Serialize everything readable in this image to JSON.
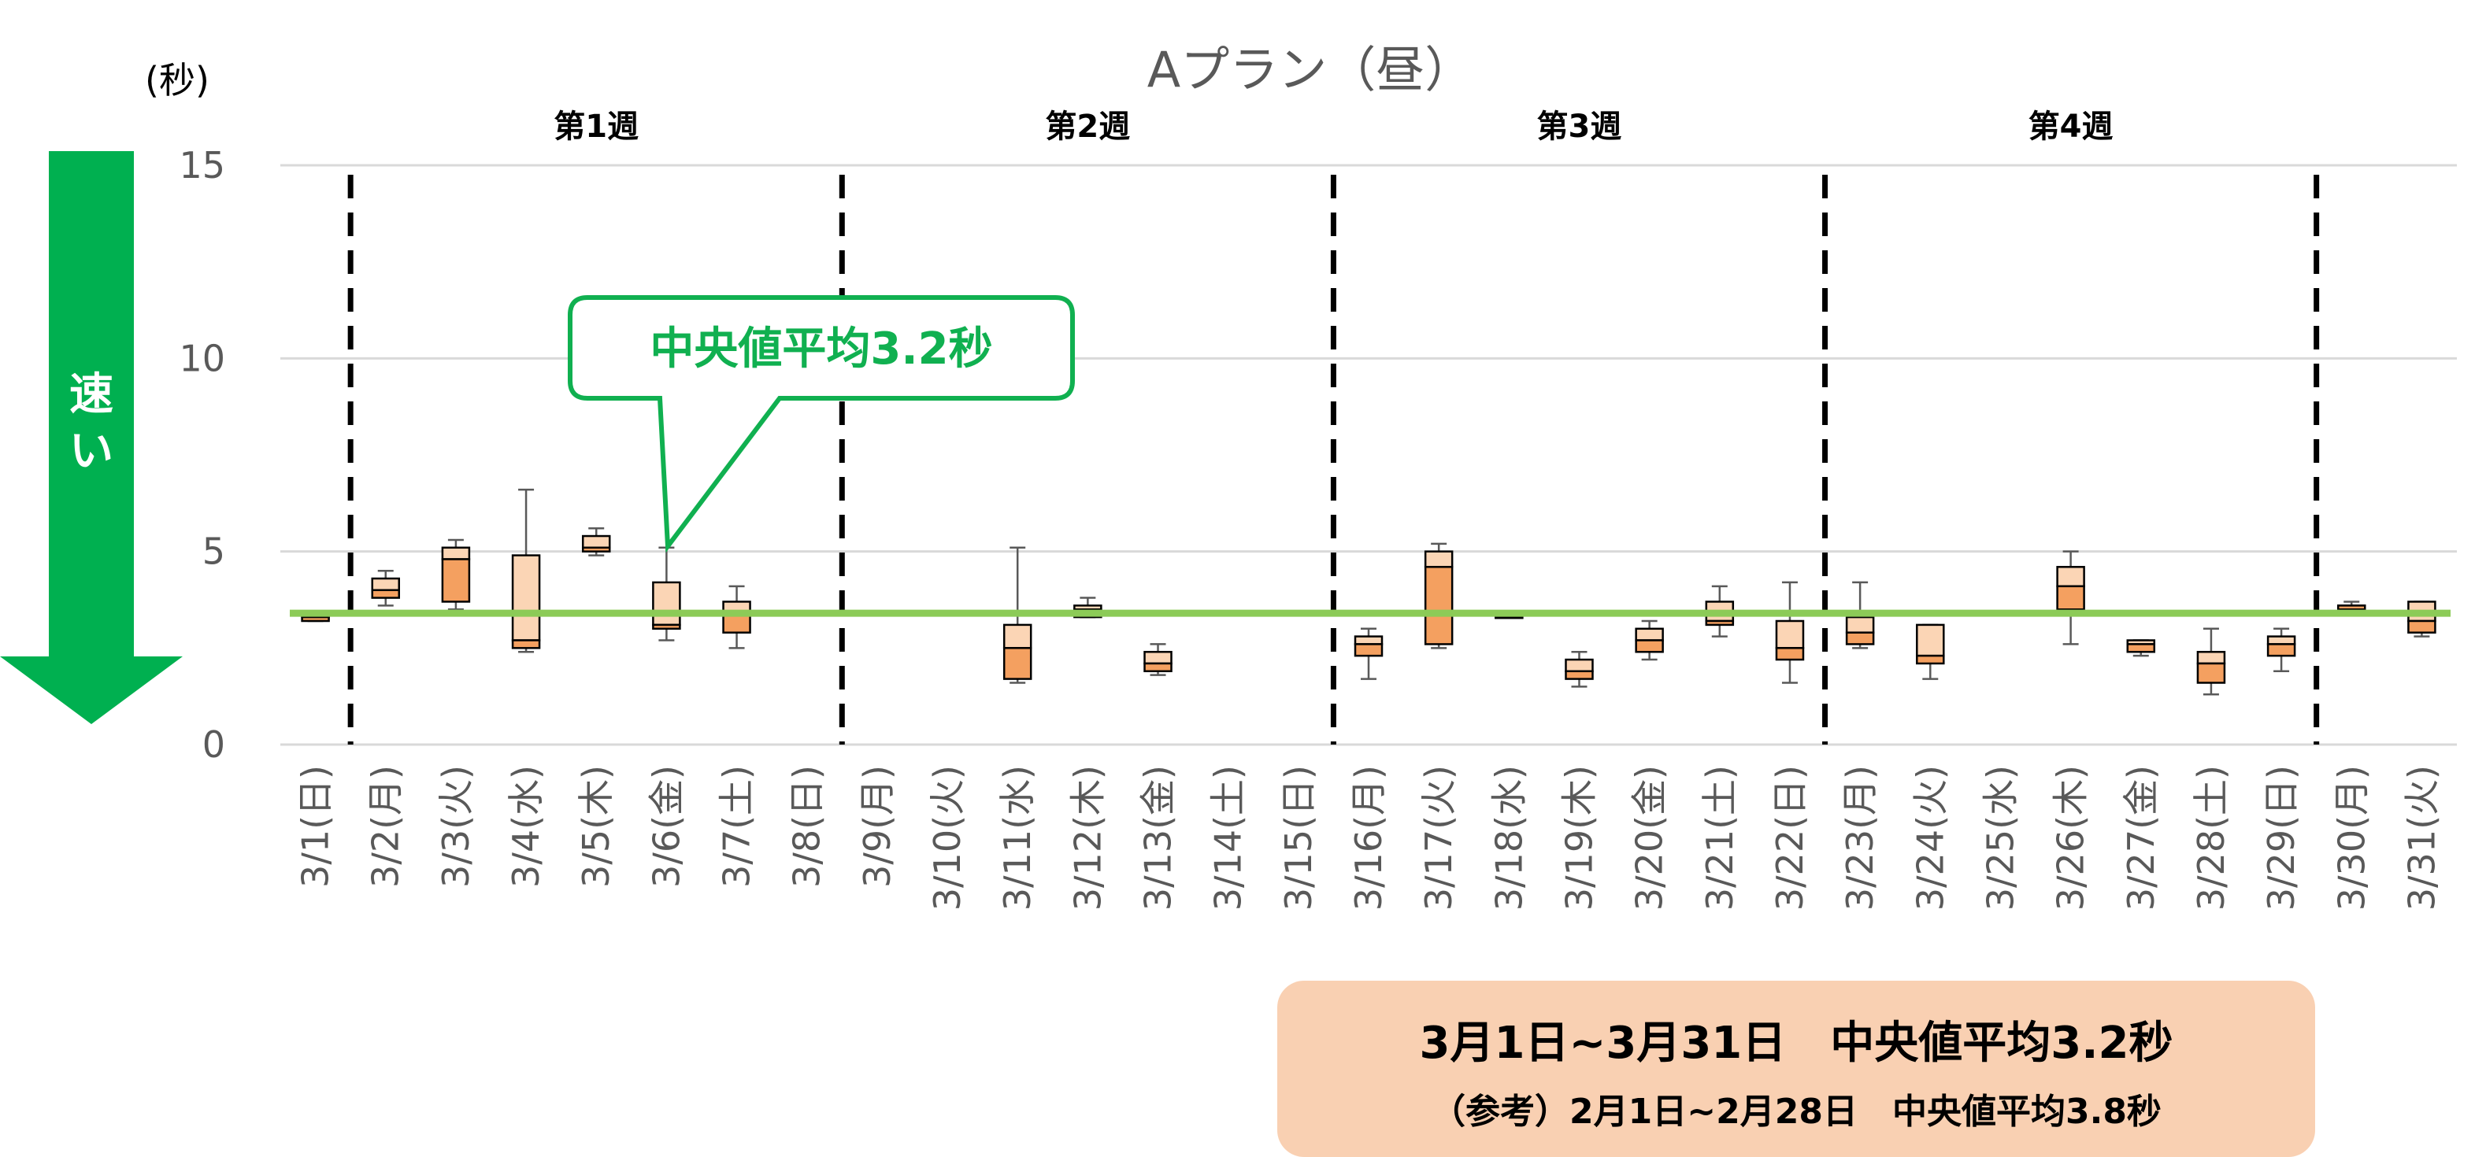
{
  "chart_data": {
    "type": "box",
    "title": "Aプラン（昼）",
    "yunit": "(秒)",
    "ylim": [
      0,
      15
    ],
    "yticks": [
      0,
      5,
      10,
      15
    ],
    "categories": [
      "3/1(日)",
      "3/2(月)",
      "3/3(火)",
      "3/4(水)",
      "3/5(木)",
      "3/6(金)",
      "3/7(土)",
      "3/8(日)",
      "3/9(月)",
      "3/10(火)",
      "3/11(水)",
      "3/12(木)",
      "3/13(金)",
      "3/14(土)",
      "3/15(日)",
      "3/16(月)",
      "3/17(火)",
      "3/18(水)",
      "3/19(木)",
      "3/20(金)",
      "3/21(土)",
      "3/22(日)",
      "3/23(月)",
      "3/24(火)",
      "3/25(水)",
      "3/26(木)",
      "3/27(金)",
      "3/28(土)",
      "3/29(日)",
      "3/30(月)",
      "3/31(火)"
    ],
    "boxes": [
      {
        "min": 3.2,
        "q1": 3.2,
        "median": 3.3,
        "q3": 3.4,
        "max": 3.4
      },
      {
        "min": 3.6,
        "q1": 3.8,
        "median": 4.0,
        "q3": 4.3,
        "max": 4.5
      },
      {
        "min": 3.5,
        "q1": 3.7,
        "median": 4.8,
        "q3": 5.1,
        "max": 5.3
      },
      {
        "min": 2.4,
        "q1": 2.5,
        "median": 2.7,
        "q3": 4.9,
        "max": 6.6
      },
      {
        "min": 4.9,
        "q1": 5.0,
        "median": 5.1,
        "q3": 5.4,
        "max": 5.6
      },
      {
        "min": 2.7,
        "q1": 3.0,
        "median": 3.1,
        "q3": 4.2,
        "max": 5.1
      },
      {
        "min": 2.5,
        "q1": 2.9,
        "median": 3.4,
        "q3": 3.7,
        "max": 4.1
      },
      null,
      null,
      null,
      {
        "min": 1.6,
        "q1": 1.7,
        "median": 2.5,
        "q3": 3.1,
        "max": 5.1
      },
      {
        "min": 3.3,
        "q1": 3.3,
        "median": 3.5,
        "q3": 3.6,
        "max": 3.8
      },
      {
        "min": 1.8,
        "q1": 1.9,
        "median": 2.1,
        "q3": 2.4,
        "max": 2.6
      },
      null,
      null,
      {
        "min": 1.7,
        "q1": 2.3,
        "median": 2.6,
        "q3": 2.8,
        "max": 3.0
      },
      {
        "min": 2.5,
        "q1": 2.6,
        "median": 4.6,
        "q3": 5.0,
        "max": 5.2
      },
      {
        "min": 3.3,
        "q1": 3.3,
        "median": 3.3,
        "q3": 3.3,
        "max": 3.3
      },
      {
        "min": 1.5,
        "q1": 1.7,
        "median": 1.9,
        "q3": 2.2,
        "max": 2.4
      },
      {
        "min": 2.2,
        "q1": 2.4,
        "median": 2.7,
        "q3": 3.0,
        "max": 3.2
      },
      {
        "min": 2.8,
        "q1": 3.1,
        "median": 3.2,
        "q3": 3.7,
        "max": 4.1
      },
      {
        "min": 1.6,
        "q1": 2.2,
        "median": 2.5,
        "q3": 3.2,
        "max": 4.2
      },
      {
        "min": 2.5,
        "q1": 2.6,
        "median": 2.9,
        "q3": 3.3,
        "max": 4.2
      },
      {
        "min": 1.7,
        "q1": 2.1,
        "median": 2.3,
        "q3": 3.1,
        "max": 3.1
      },
      null,
      {
        "min": 2.6,
        "q1": 3.5,
        "median": 4.1,
        "q3": 4.6,
        "max": 5.0
      },
      {
        "min": 2.3,
        "q1": 2.4,
        "median": 2.6,
        "q3": 2.7,
        "max": 2.7
      },
      {
        "min": 1.3,
        "q1": 1.6,
        "median": 2.1,
        "q3": 2.4,
        "max": 3.0
      },
      {
        "min": 1.9,
        "q1": 2.3,
        "median": 2.6,
        "q3": 2.8,
        "max": 3.0
      },
      {
        "min": 3.5,
        "q1": 3.5,
        "median": 3.6,
        "q3": 3.6,
        "max": 3.7
      },
      {
        "min": 2.8,
        "q1": 2.9,
        "median": 3.2,
        "q3": 3.7,
        "max": 3.7
      }
    ],
    "reference_line": {
      "value": 3.4,
      "color": "#8ccb57"
    },
    "week_labels": [
      "第1週",
      "第2週",
      "第3週",
      "第4週"
    ],
    "week_boundaries_after": [
      "3/1(日)",
      "3/8(日)",
      "3/15(日)",
      "3/22(日)",
      "3/29(日)"
    ],
    "colors": {
      "box_dark": "#f4a060",
      "box_light": "#fbd5b5",
      "grid": "#d9d9d9",
      "arrow": "#00b050",
      "callout": "#10b050"
    }
  },
  "arrow_label": "速い",
  "callout_text": "中央値平均3.2秒",
  "summary": {
    "line1": "3月1日~3月31日　中央値平均3.2秒",
    "line2": "（参考）2月1日~2月28日　中央値平均3.8秒"
  }
}
